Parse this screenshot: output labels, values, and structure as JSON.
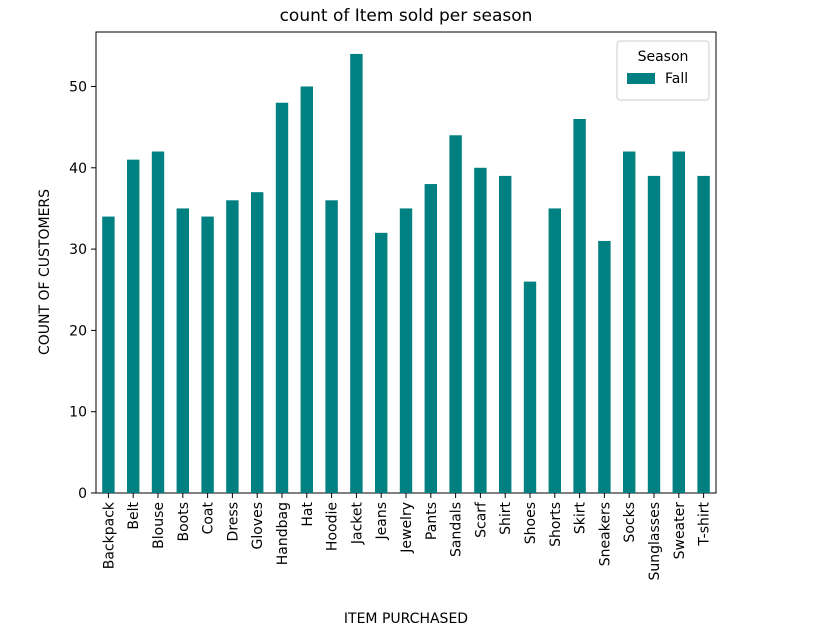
{
  "chart_data": {
    "type": "bar",
    "title": "count of Item sold per season",
    "xlabel": "ITEM PURCHASED",
    "ylabel": "COUNT OF CUSTOMERS",
    "categories": [
      "Backpack",
      "Belt",
      "Blouse",
      "Boots",
      "Coat",
      "Dress",
      "Gloves",
      "Handbag",
      "Hat",
      "Hoodie",
      "Jacket",
      "Jeans",
      "Jewelry",
      "Pants",
      "Sandals",
      "Scarf",
      "Shirt",
      "Shoes",
      "Shorts",
      "Skirt",
      "Sneakers",
      "Socks",
      "Sunglasses",
      "Sweater",
      "T-shirt"
    ],
    "series": [
      {
        "name": "Fall",
        "color": "#008080",
        "values": [
          34,
          41,
          42,
          35,
          34,
          36,
          37,
          48,
          50,
          36,
          54,
          32,
          35,
          38,
          44,
          40,
          39,
          26,
          35,
          46,
          31,
          42,
          39,
          42,
          39
        ]
      }
    ],
    "ylim": [
      0,
      56.7
    ],
    "yticks": [
      0,
      10,
      20,
      30,
      40,
      50
    ],
    "grid": false,
    "legend": {
      "title": "Season",
      "position": "top-right"
    }
  }
}
